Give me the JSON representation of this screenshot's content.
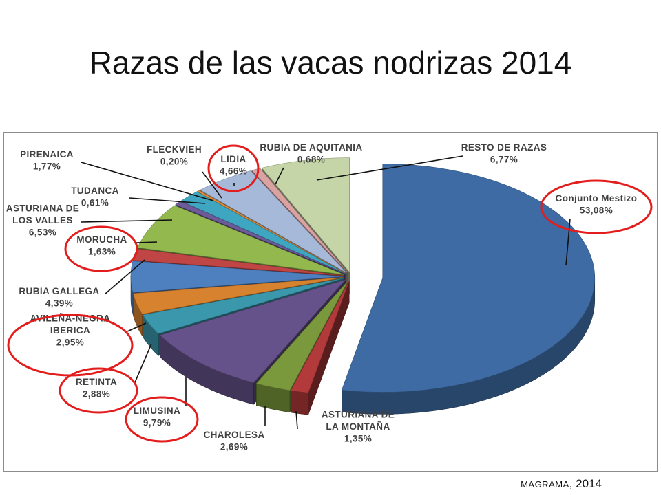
{
  "title": "Razas de las vacas nodrizas 2014",
  "source": {
    "org": "MAGRAMA",
    "year": ", 2014"
  },
  "chart_data": {
    "type": "pie",
    "title": "Razas de las vacas nodrizas 2014",
    "exploded": true,
    "slices": [
      {
        "label": "Conjunto Mestizo",
        "value": 53.08,
        "value_text": "53,08%",
        "color": "#3e6ba3",
        "highlighted": true
      },
      {
        "label": "ASTURIANA DE LA MONTAÑA",
        "value": 1.35,
        "value_text": "1,35%",
        "color": "#b33a3a",
        "highlighted": false
      },
      {
        "label": "CHAROLESA",
        "value": 2.69,
        "value_text": "2,69%",
        "color": "#79993c",
        "highlighted": false
      },
      {
        "label": "LIMUSINA",
        "value": 9.79,
        "value_text": "9,79%",
        "color": "#66528a",
        "highlighted": true
      },
      {
        "label": "RETINTA",
        "value": 2.88,
        "value_text": "2,88%",
        "color": "#3a97ac",
        "highlighted": true
      },
      {
        "label": "AVILEÑA-NEGRA IBERICA",
        "value": 2.95,
        "value_text": "2,95%",
        "color": "#d7822f",
        "highlighted": true
      },
      {
        "label": "RUBIA GALLEGA",
        "value": 4.39,
        "value_text": "4,39%",
        "color": "#4e7fbf",
        "highlighted": false
      },
      {
        "label": "MORUCHA",
        "value": 1.63,
        "value_text": "1,63%",
        "color": "#c04545",
        "highlighted": true
      },
      {
        "label": "ASTURIANA DE LOS VALLES",
        "value": 6.53,
        "value_text": "6,53%",
        "color": "#93b84e",
        "highlighted": false
      },
      {
        "label": "TUDANCA",
        "value": 0.61,
        "value_text": "0,61%",
        "color": "#6c5b98",
        "highlighted": false
      },
      {
        "label": "PIRENAICA",
        "value": 1.77,
        "value_text": "1,77%",
        "color": "#3fa6c2",
        "highlighted": false
      },
      {
        "label": "FLECKVIEH",
        "value": 0.2,
        "value_text": "0,20%",
        "color": "#e08c35",
        "highlighted": false
      },
      {
        "label": "LIDIA",
        "value": 4.66,
        "value_text": "4,66%",
        "color": "#a7b9d9",
        "highlighted": true
      },
      {
        "label": "RUBIA DE AQUITANIA",
        "value": 0.68,
        "value_text": "0,68%",
        "color": "#dba2a2",
        "highlighted": false
      },
      {
        "label": "RESTO DE RAZAS",
        "value": 6.77,
        "value_text": "6,77%",
        "color": "#c5d5a8",
        "highlighted": false
      }
    ]
  }
}
